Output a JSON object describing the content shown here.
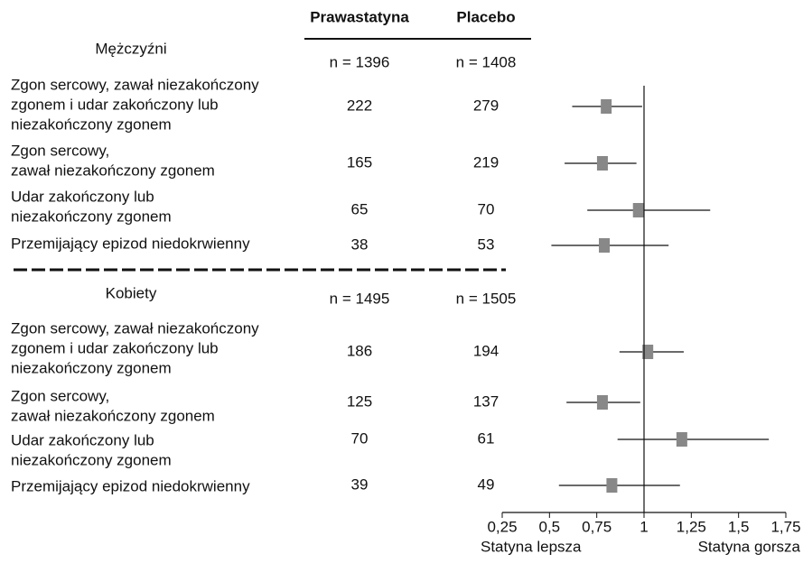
{
  "chart_data": {
    "type": "forest",
    "columns": [
      "Prawastatyna",
      "Placebo"
    ],
    "xlim": [
      0.25,
      1.75
    ],
    "xticks": [
      {
        "value": 0.25,
        "label": "0,25"
      },
      {
        "value": 0.5,
        "label": "0,5"
      },
      {
        "value": 0.75,
        "label": "0,75"
      },
      1,
      {
        "value": 1.25,
        "label": "1,25"
      },
      {
        "value": 1.5,
        "label": "1,5"
      },
      {
        "value": 1.75,
        "label": "1,75"
      }
    ],
    "reference": 1,
    "xlabel_left": "Statyna lepsza",
    "xlabel_right": "Statyna gorsza",
    "marker_color": "#888888",
    "groups": [
      {
        "name": "Mężczyźni",
        "n": [
          "n = 1396",
          "n = 1408"
        ],
        "rows": [
          {
            "label": [
              "Zgon sercowy, zawał niezakończony",
              "zgonem i udar zakończony lub",
              "niezakończony zgonem"
            ],
            "counts": [
              222,
              279
            ],
            "estimate": 0.8,
            "low": 0.62,
            "high": 0.99
          },
          {
            "label": [
              "Zgon sercowy,",
              "zawał niezakończony zgonem"
            ],
            "counts": [
              165,
              219
            ],
            "estimate": 0.78,
            "low": 0.58,
            "high": 0.96
          },
          {
            "label": [
              "Udar zakończony lub",
              "niezakończony zgonem"
            ],
            "counts": [
              65,
              70
            ],
            "estimate": 0.97,
            "low": 0.7,
            "high": 1.35
          },
          {
            "label": [
              "Przemijający epizod niedokrwienny"
            ],
            "counts": [
              38,
              53
            ],
            "estimate": 0.79,
            "low": 0.51,
            "high": 1.13
          }
        ]
      },
      {
        "name": "Kobiety",
        "n": [
          "n = 1495",
          "n = 1505"
        ],
        "rows": [
          {
            "label": [
              "Zgon sercowy, zawał niezakończony",
              "zgonem i udar zakończony lub",
              "niezakończony zgonem"
            ],
            "counts": [
              186,
              194
            ],
            "estimate": 1.02,
            "low": 0.87,
            "high": 1.21
          },
          {
            "label": [
              "Zgon sercowy,",
              "zawał niezakończony zgonem"
            ],
            "counts": [
              125,
              137
            ],
            "estimate": 0.78,
            "low": 0.59,
            "high": 0.98
          },
          {
            "label": [
              "Udar zakończony lub",
              "niezakończony zgonem"
            ],
            "counts": [
              70,
              61
            ],
            "estimate": 1.2,
            "low": 0.86,
            "high": 1.66
          },
          {
            "label": [
              "Przemijający epizod niedokrwienny"
            ],
            "counts": [
              39,
              49
            ],
            "estimate": 0.83,
            "low": 0.55,
            "high": 1.19
          }
        ]
      }
    ]
  }
}
